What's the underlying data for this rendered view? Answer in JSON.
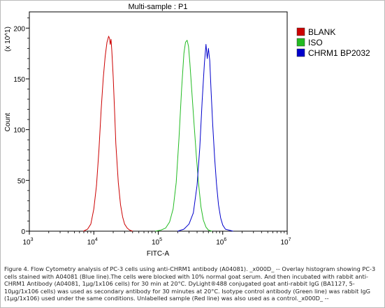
{
  "chart_data": {
    "type": "line",
    "title": "Multi-sample : P1",
    "xlabel": "FITC-A",
    "ylabel": "Count",
    "y_multiplier": "(x 10^1)",
    "x_scale": "log",
    "xlim": [
      1000,
      10000000
    ],
    "ylim": [
      0,
      216
    ],
    "x_ticks": [
      {
        "value": 1000,
        "base": "10",
        "exp": "3"
      },
      {
        "value": 10000,
        "base": "10",
        "exp": "4"
      },
      {
        "value": 100000,
        "base": "10",
        "exp": "5"
      },
      {
        "value": 1000000,
        "base": "10",
        "exp": "6"
      },
      {
        "value": 10000000,
        "base": "10",
        "exp": "7"
      }
    ],
    "y_ticks": [
      0,
      50,
      100,
      150,
      200
    ],
    "grid": false,
    "legend_position": "right",
    "series": [
      {
        "name": "BLANK",
        "color": "#cc0000",
        "x": [
          6900,
          8000,
          9000,
          10000,
          11000,
          12000,
          13000,
          14000,
          15000,
          16000,
          17000,
          17500,
          18000,
          18500,
          19000,
          20000,
          21000,
          22000,
          24000,
          26000,
          28000,
          30000,
          33000,
          36000,
          40000
        ],
        "y": [
          0,
          2,
          7,
          22,
          45,
          80,
          120,
          150,
          172,
          186,
          192,
          190,
          184,
          189,
          178,
          152,
          118,
          86,
          48,
          26,
          14,
          7,
          3,
          1,
          0
        ]
      },
      {
        "name": "ISO",
        "color": "#22bb22",
        "x": [
          90000,
          110000,
          130000,
          150000,
          170000,
          190000,
          210000,
          230000,
          250000,
          265000,
          280000,
          295000,
          310000,
          330000,
          360000,
          390000,
          420000,
          460000,
          500000,
          550000,
          600000,
          680000
        ],
        "y": [
          0,
          1,
          3,
          9,
          22,
          48,
          92,
          140,
          175,
          186,
          188,
          182,
          165,
          140,
          105,
          74,
          48,
          24,
          11,
          4,
          1,
          0
        ]
      },
      {
        "name": "CHRM1 BP2032",
        "color": "#0000cc",
        "x": [
          200000,
          250000,
          300000,
          350000,
          400000,
          440000,
          480000,
          520000,
          550000,
          575000,
          600000,
          630000,
          660000,
          700000,
          750000,
          800000,
          860000,
          930000,
          1000000,
          1100000,
          1250000,
          1450000
        ],
        "y": [
          0,
          2,
          7,
          18,
          45,
          82,
          128,
          166,
          184,
          170,
          180,
          168,
          138,
          104,
          72,
          47,
          26,
          13,
          6,
          2,
          1,
          0
        ]
      }
    ]
  },
  "caption": "Figure 4. Flow Cytometry analysis of PC-3 cells using anti-CHRM1 antibody (A04081). _x000D_ -- Overlay histogram showing PC-3 cells stained with A04081 (Blue line).The cells were blocked with 10% normal goat serum. And then incubated with rabbit anti-CHRM1 Antibody (A04081, 1μg/1x106 cells) for 30 min at 20°C. DyLight®488 conjugated goat anti-rabbit IgG (BA1127, 5-10μg/1x106 cells) was used as secondary antibody for 30 minutes at 20°C. Isotype control antibody (Green line) was rabbit IgG (1μg/1x106) used under the same conditions. Unlabelled sample (Red line) was also used as a control._x000D_ --"
}
